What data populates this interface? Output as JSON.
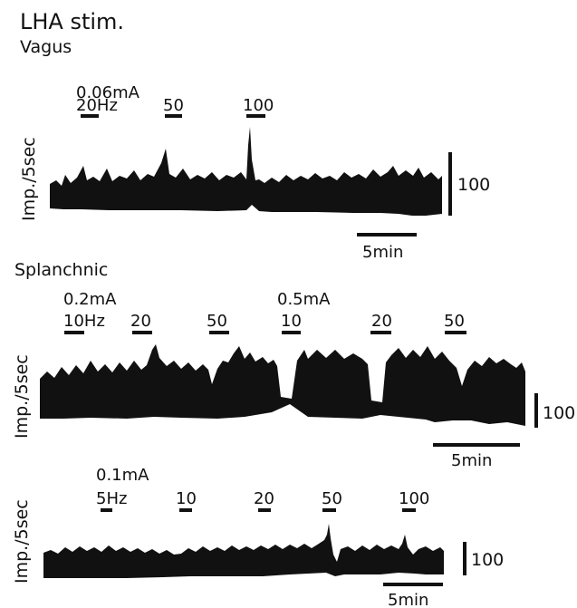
{
  "title": "LHA stim.",
  "colors": {
    "ink": "#111111",
    "background": "#ffffff"
  },
  "panels": [
    {
      "section_label": "Vagus",
      "ylabel": "Imp./5sec",
      "intensity": "0.06mA",
      "frequencies": [
        "20Hz",
        "50",
        "100"
      ],
      "scale_value": "100",
      "time_scale": "5min"
    },
    {
      "section_label": "Splanchnic",
      "ylabel": "Imp./5sec",
      "intensity_1": "0.2mA",
      "intensity_2": "0.5mA",
      "frequencies": [
        "10Hz",
        "20",
        "50",
        "10",
        "20",
        "50"
      ],
      "scale_value": "100",
      "time_scale": "5min"
    },
    {
      "ylabel": "Imp./5sec",
      "intensity": "0.1mA",
      "frequencies": [
        "5Hz",
        "10",
        "20",
        "50",
        "100"
      ],
      "scale_value": "100",
      "time_scale": "5min"
    }
  ]
}
